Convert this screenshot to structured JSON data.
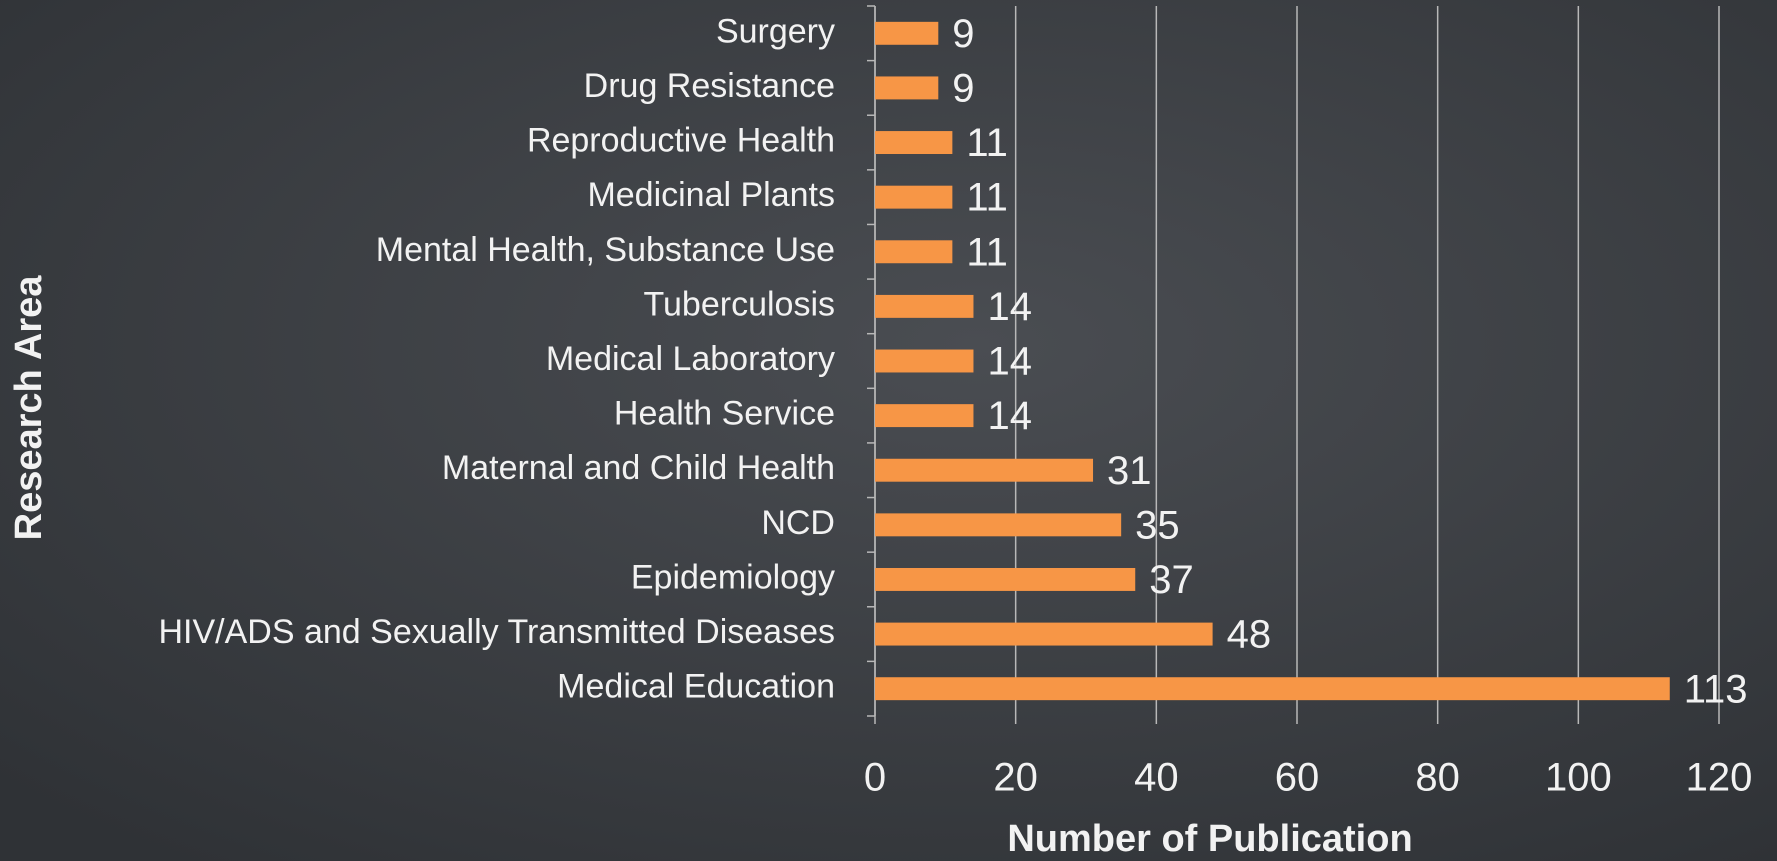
{
  "chart_data": {
    "type": "bar",
    "orientation": "horizontal",
    "x_label": "Number of Publication",
    "y_label": "Research Area",
    "categories": [
      "Surgery",
      "Drug Resistance",
      "Reproductive Health",
      "Medicinal Plants",
      "Mental Health, Substance Use",
      "Tuberculosis",
      "Medical Laboratory",
      "Health Service",
      "Maternal and Child Health",
      "NCD",
      "Epidemiology",
      "HIV/ADS and Sexually Transmitted Diseases",
      "Medical Education"
    ],
    "values": [
      9,
      9,
      11,
      11,
      11,
      14,
      14,
      14,
      31,
      35,
      37,
      48,
      113
    ],
    "color": "#f79646",
    "xlim": [
      0,
      120
    ],
    "xticks": [
      0,
      20,
      40,
      60,
      80,
      100,
      120
    ],
    "grid": true
  }
}
